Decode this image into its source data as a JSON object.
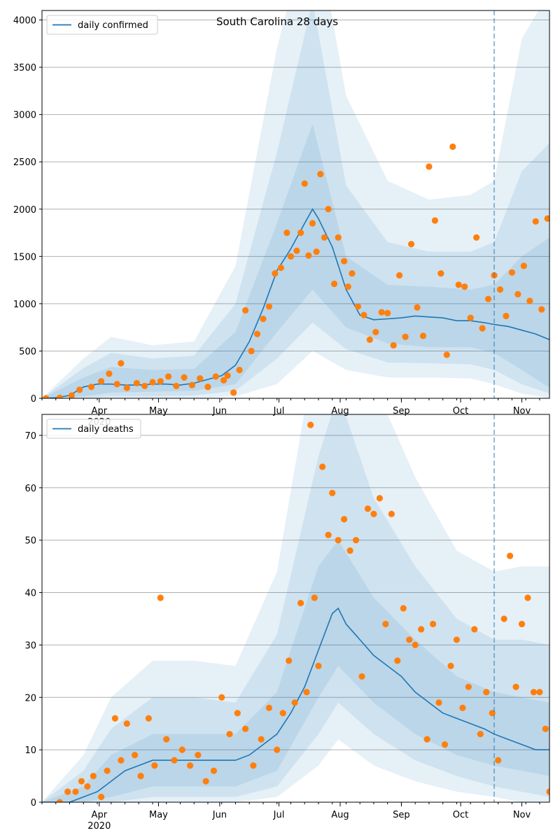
{
  "colors": {
    "line": "#1f77b4",
    "points": "#ff7f0e",
    "band": "#1f77b4",
    "grid": "#b0b0b0",
    "divider": "#1f77b4"
  },
  "chart_data": [
    {
      "type": "line",
      "title": "South Carolina 28 days",
      "xlabel": "",
      "ylabel": "",
      "legend": [
        "daily confirmed"
      ],
      "legend_position": "top-left",
      "grid": "horizontal",
      "x_axis": {
        "type": "date",
        "range": [
          "2020-03-03",
          "2020-11-15"
        ],
        "tick_labels": [
          "Apr",
          "May",
          "Jun",
          "Jul",
          "Aug",
          "Sep",
          "Oct",
          "Nov"
        ],
        "tick_dates": [
          "2020-04-01",
          "2020-05-01",
          "2020-06-01",
          "2020-07-01",
          "2020-08-01",
          "2020-09-01",
          "2020-10-01",
          "2020-11-01"
        ],
        "year_label": "2020"
      },
      "ylim": [
        0,
        4100
      ],
      "yticks": [
        0,
        500,
        1000,
        1500,
        2000,
        2500,
        3000,
        3500,
        4000
      ],
      "forecast_start": "2020-10-18",
      "series": [
        {
          "name": "daily confirmed",
          "type": "line",
          "x": [
            "2020-03-03",
            "2020-03-10",
            "2020-03-17",
            "2020-03-24",
            "2020-03-31",
            "2020-04-07",
            "2020-04-14",
            "2020-04-21",
            "2020-04-28",
            "2020-05-05",
            "2020-05-12",
            "2020-05-19",
            "2020-05-26",
            "2020-06-02",
            "2020-06-09",
            "2020-06-16",
            "2020-06-23",
            "2020-06-30",
            "2020-07-07",
            "2020-07-14",
            "2020-07-18",
            "2020-07-21",
            "2020-07-28",
            "2020-08-04",
            "2020-08-11",
            "2020-08-18",
            "2020-08-25",
            "2020-09-01",
            "2020-09-08",
            "2020-09-15",
            "2020-09-22",
            "2020-09-29",
            "2020-10-06",
            "2020-10-13",
            "2020-10-18",
            "2020-10-25",
            "2020-11-01",
            "2020-11-08",
            "2020-11-15"
          ],
          "y": [
            0,
            5,
            30,
            120,
            150,
            150,
            140,
            140,
            150,
            150,
            140,
            160,
            200,
            240,
            350,
            600,
            950,
            1350,
            1580,
            1850,
            2000,
            1900,
            1600,
            1150,
            880,
            830,
            840,
            850,
            870,
            860,
            850,
            820,
            820,
            800,
            780,
            760,
            720,
            680,
            620
          ]
        },
        {
          "name": "observed",
          "type": "scatter",
          "x": [
            "2020-03-05",
            "2020-03-12",
            "2020-03-18",
            "2020-03-22",
            "2020-03-28",
            "2020-04-02",
            "2020-04-06",
            "2020-04-10",
            "2020-04-12",
            "2020-04-15",
            "2020-04-20",
            "2020-04-24",
            "2020-04-28",
            "2020-05-02",
            "2020-05-06",
            "2020-05-10",
            "2020-05-14",
            "2020-05-18",
            "2020-05-22",
            "2020-05-26",
            "2020-05-30",
            "2020-06-03",
            "2020-06-05",
            "2020-06-08",
            "2020-06-11",
            "2020-06-14",
            "2020-06-17",
            "2020-06-20",
            "2020-06-23",
            "2020-06-26",
            "2020-06-29",
            "2020-07-02",
            "2020-07-05",
            "2020-07-07",
            "2020-07-10",
            "2020-07-12",
            "2020-07-14",
            "2020-07-16",
            "2020-07-18",
            "2020-07-20",
            "2020-07-22",
            "2020-07-24",
            "2020-07-26",
            "2020-07-29",
            "2020-07-31",
            "2020-08-03",
            "2020-08-05",
            "2020-08-07",
            "2020-08-10",
            "2020-08-13",
            "2020-08-16",
            "2020-08-19",
            "2020-08-22",
            "2020-08-25",
            "2020-08-28",
            "2020-08-31",
            "2020-09-03",
            "2020-09-06",
            "2020-09-09",
            "2020-09-12",
            "2020-09-15",
            "2020-09-18",
            "2020-09-21",
            "2020-09-24",
            "2020-09-27",
            "2020-09-30",
            "2020-10-03",
            "2020-10-06",
            "2020-10-09",
            "2020-10-12",
            "2020-10-15",
            "2020-10-18",
            "2020-10-21",
            "2020-10-24",
            "2020-10-27",
            "2020-10-30",
            "2020-11-02",
            "2020-11-05",
            "2020-11-08",
            "2020-11-11",
            "2020-11-14"
          ],
          "y": [
            0,
            5,
            30,
            90,
            120,
            180,
            260,
            150,
            370,
            110,
            160,
            130,
            170,
            180,
            230,
            130,
            220,
            140,
            210,
            120,
            230,
            190,
            240,
            60,
            300,
            930,
            500,
            680,
            840,
            970,
            1320,
            1380,
            1750,
            1500,
            1560,
            1750,
            2270,
            1510,
            1850,
            1550,
            2370,
            1700,
            2000,
            1210,
            1700,
            1450,
            1180,
            1320,
            970,
            880,
            620,
            700,
            910,
            900,
            560,
            1300,
            650,
            1630,
            960,
            660,
            2450,
            1880,
            1320,
            460,
            2660,
            1200,
            1180,
            850,
            1700,
            740,
            1050,
            1300,
            1150,
            870,
            1330,
            1100,
            1400,
            1030,
            1870,
            940,
            1900
          ]
        }
      ],
      "bands": [
        {
          "x": [
            "2020-03-03",
            "2020-03-24",
            "2020-04-07",
            "2020-04-28",
            "2020-05-19",
            "2020-06-09",
            "2020-06-30",
            "2020-07-18",
            "2020-08-04",
            "2020-08-25",
            "2020-09-15",
            "2020-10-06",
            "2020-10-18",
            "2020-11-01",
            "2020-11-15"
          ],
          "lower": [
            0,
            20,
            60,
            70,
            80,
            150,
            700,
            1150,
            750,
            580,
            540,
            540,
            480,
            300,
            110
          ],
          "upper": [
            0,
            220,
            330,
            300,
            310,
            700,
            1850,
            2900,
            1500,
            1200,
            1180,
            1150,
            1200,
            1500,
            1700
          ]
        },
        {
          "x": [
            "2020-03-03",
            "2020-03-24",
            "2020-04-07",
            "2020-04-28",
            "2020-05-19",
            "2020-06-09",
            "2020-06-30",
            "2020-07-18",
            "2020-08-04",
            "2020-08-25",
            "2020-09-15",
            "2020-10-06",
            "2020-10-18",
            "2020-11-01",
            "2020-11-15"
          ],
          "lower": [
            0,
            5,
            20,
            20,
            30,
            80,
            420,
            800,
            520,
            380,
            370,
            360,
            300,
            150,
            50
          ],
          "upper": [
            0,
            320,
            480,
            420,
            450,
            1000,
            2600,
            4200,
            2250,
            1650,
            1550,
            1550,
            1650,
            2400,
            2700
          ]
        },
        {
          "x": [
            "2020-03-03",
            "2020-03-24",
            "2020-04-07",
            "2020-04-28",
            "2020-05-19",
            "2020-06-09",
            "2020-06-30",
            "2020-07-18",
            "2020-08-04",
            "2020-08-25",
            "2020-09-15",
            "2020-10-06",
            "2020-10-18",
            "2020-11-01",
            "2020-11-15"
          ],
          "lower": [
            0,
            0,
            0,
            0,
            0,
            20,
            150,
            500,
            300,
            220,
            220,
            210,
            150,
            50,
            0
          ],
          "upper": [
            0,
            420,
            650,
            560,
            600,
            1400,
            3700,
            5200,
            3200,
            2300,
            2100,
            2150,
            2300,
            3800,
            4300
          ]
        }
      ]
    },
    {
      "type": "line",
      "title": "",
      "xlabel": "",
      "ylabel": "",
      "legend": [
        "daily deaths"
      ],
      "legend_position": "top-left",
      "grid": "horizontal",
      "x_axis": {
        "type": "date",
        "range": [
          "2020-03-03",
          "2020-11-15"
        ],
        "tick_labels": [
          "Apr",
          "May",
          "Jun",
          "Jul",
          "Aug",
          "Sep",
          "Oct",
          "Nov"
        ],
        "tick_dates": [
          "2020-04-01",
          "2020-05-01",
          "2020-06-01",
          "2020-07-01",
          "2020-08-01",
          "2020-09-01",
          "2020-10-01",
          "2020-11-01"
        ],
        "year_label": "2020"
      },
      "ylim": [
        0,
        74
      ],
      "yticks": [
        0,
        10,
        20,
        30,
        40,
        50,
        60,
        70
      ],
      "forecast_start": "2020-10-18",
      "series": [
        {
          "name": "daily deaths",
          "type": "line",
          "x": [
            "2020-03-03",
            "2020-03-17",
            "2020-03-24",
            "2020-03-31",
            "2020-04-07",
            "2020-04-14",
            "2020-04-21",
            "2020-04-28",
            "2020-05-05",
            "2020-05-12",
            "2020-05-19",
            "2020-05-26",
            "2020-06-02",
            "2020-06-09",
            "2020-06-16",
            "2020-06-23",
            "2020-06-30",
            "2020-07-07",
            "2020-07-14",
            "2020-07-21",
            "2020-07-28",
            "2020-07-31",
            "2020-08-04",
            "2020-08-11",
            "2020-08-18",
            "2020-08-25",
            "2020-09-01",
            "2020-09-08",
            "2020-09-15",
            "2020-09-22",
            "2020-09-29",
            "2020-10-06",
            "2020-10-13",
            "2020-10-18",
            "2020-10-25",
            "2020-11-01",
            "2020-11-08",
            "2020-11-15"
          ],
          "y": [
            0,
            0,
            1,
            2,
            4,
            6,
            7,
            8,
            8,
            8,
            8,
            8,
            8,
            8,
            9,
            11,
            13,
            17,
            22,
            29,
            36,
            37,
            34,
            31,
            28,
            26,
            24,
            21,
            19,
            17,
            16,
            15,
            14,
            13,
            12,
            11,
            10,
            10
          ]
        },
        {
          "name": "observed",
          "type": "scatter",
          "x": [
            "2020-03-12",
            "2020-03-16",
            "2020-03-20",
            "2020-03-23",
            "2020-03-26",
            "2020-03-29",
            "2020-04-02",
            "2020-04-05",
            "2020-04-09",
            "2020-04-12",
            "2020-04-15",
            "2020-04-19",
            "2020-04-22",
            "2020-04-26",
            "2020-04-29",
            "2020-05-02",
            "2020-05-05",
            "2020-05-09",
            "2020-05-13",
            "2020-05-17",
            "2020-05-21",
            "2020-05-25",
            "2020-05-29",
            "2020-06-02",
            "2020-06-06",
            "2020-06-10",
            "2020-06-14",
            "2020-06-18",
            "2020-06-22",
            "2020-06-26",
            "2020-06-30",
            "2020-07-03",
            "2020-07-06",
            "2020-07-09",
            "2020-07-12",
            "2020-07-15",
            "2020-07-17",
            "2020-07-19",
            "2020-07-21",
            "2020-07-23",
            "2020-07-26",
            "2020-07-28",
            "2020-07-31",
            "2020-08-03",
            "2020-08-06",
            "2020-08-09",
            "2020-08-12",
            "2020-08-15",
            "2020-08-18",
            "2020-08-21",
            "2020-08-24",
            "2020-08-27",
            "2020-08-30",
            "2020-09-02",
            "2020-09-05",
            "2020-09-08",
            "2020-09-11",
            "2020-09-14",
            "2020-09-17",
            "2020-09-20",
            "2020-09-23",
            "2020-09-26",
            "2020-09-29",
            "2020-10-02",
            "2020-10-05",
            "2020-10-08",
            "2020-10-11",
            "2020-10-14",
            "2020-10-17",
            "2020-10-20",
            "2020-10-23",
            "2020-10-26",
            "2020-10-29",
            "2020-11-01",
            "2020-11-04",
            "2020-11-07",
            "2020-11-10",
            "2020-11-13",
            "2020-11-15"
          ],
          "y": [
            0,
            2,
            2,
            4,
            3,
            5,
            1,
            6,
            16,
            8,
            15,
            9,
            5,
            16,
            7,
            39,
            12,
            8,
            10,
            7,
            9,
            4,
            6,
            20,
            13,
            17,
            14,
            7,
            12,
            18,
            10,
            17,
            27,
            19,
            38,
            21,
            72,
            39,
            26,
            64,
            51,
            59,
            50,
            54,
            48,
            50,
            24,
            56,
            55,
            58,
            34,
            55,
            27,
            37,
            31,
            30,
            33,
            12,
            34,
            19,
            11,
            26,
            31,
            18,
            22,
            33,
            13,
            21,
            17,
            8,
            35,
            47,
            22,
            34,
            39,
            21,
            21,
            14,
            2
          ]
        }
      ],
      "bands": [
        {
          "x": [
            "2020-03-03",
            "2020-03-24",
            "2020-04-07",
            "2020-04-28",
            "2020-05-19",
            "2020-06-09",
            "2020-06-30",
            "2020-07-21",
            "2020-07-31",
            "2020-08-18",
            "2020-09-08",
            "2020-09-29",
            "2020-10-18",
            "2020-11-01",
            "2020-11-15"
          ],
          "lower": [
            0,
            0,
            1,
            3,
            3,
            3,
            6,
            20,
            26,
            19,
            13,
            9,
            7,
            6,
            5
          ],
          "upper": [
            0,
            3,
            9,
            13,
            13,
            13,
            21,
            45,
            50,
            39,
            31,
            24,
            21,
            20,
            19
          ]
        },
        {
          "x": [
            "2020-03-03",
            "2020-03-24",
            "2020-04-07",
            "2020-04-28",
            "2020-05-19",
            "2020-06-09",
            "2020-06-30",
            "2020-07-21",
            "2020-07-31",
            "2020-08-18",
            "2020-09-08",
            "2020-09-29",
            "2020-10-18",
            "2020-11-01",
            "2020-11-15"
          ],
          "lower": [
            0,
            0,
            0,
            1,
            1,
            1,
            3,
            13,
            19,
            13,
            8,
            5,
            3,
            2,
            1
          ],
          "upper": [
            0,
            6,
            14,
            20,
            20,
            19,
            32,
            66,
            78,
            58,
            45,
            35,
            31,
            31,
            30
          ]
        },
        {
          "x": [
            "2020-03-03",
            "2020-03-24",
            "2020-04-07",
            "2020-04-28",
            "2020-05-19",
            "2020-06-09",
            "2020-06-30",
            "2020-07-21",
            "2020-07-31",
            "2020-08-18",
            "2020-09-08",
            "2020-09-29",
            "2020-10-18",
            "2020-11-01",
            "2020-11-15"
          ],
          "lower": [
            0,
            0,
            0,
            0,
            0,
            0,
            1,
            7,
            12,
            7,
            4,
            2,
            1,
            0,
            0
          ],
          "upper": [
            0,
            9,
            20,
            27,
            27,
            26,
            44,
            90,
            104,
            80,
            62,
            48,
            44,
            45,
            45
          ]
        }
      ]
    }
  ]
}
